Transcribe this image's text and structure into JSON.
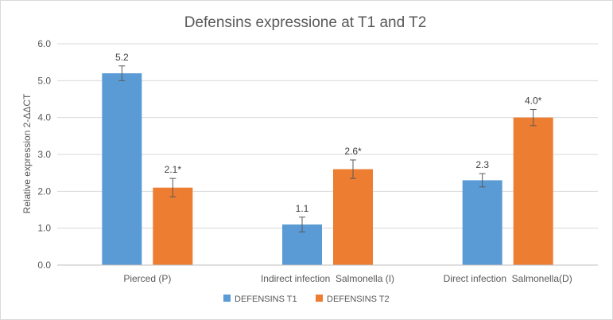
{
  "chart_data": {
    "type": "bar",
    "title": "Defensins expressione at T1 and T2",
    "ylabel": "Relative expression 2-ΔΔCT",
    "xlabel": "",
    "ylim": [
      0,
      6
    ],
    "yticks": [
      "0.0",
      "1.0",
      "2.0",
      "3.0",
      "4.0",
      "5.0",
      "6.0"
    ],
    "grid": true,
    "legend_position": "bottom",
    "categories": [
      "Pierced (P)",
      "Indirect infection  Salmonella (I)",
      "Direct infection  Salmonella(D)"
    ],
    "series": [
      {
        "name": "DEFENSINS T1",
        "color": "#5b9bd5",
        "values": [
          5.2,
          1.1,
          2.3
        ],
        "labels": [
          "5.2",
          "1.1",
          "2.3"
        ],
        "errors": [
          0.2,
          0.2,
          0.18
        ]
      },
      {
        "name": "DEFENSINS T2",
        "color": "#ed7d31",
        "values": [
          2.1,
          2.6,
          4.0
        ],
        "labels": [
          "2.1*",
          "2.6*",
          "4.0*"
        ],
        "errors": [
          0.25,
          0.25,
          0.22
        ]
      }
    ]
  }
}
